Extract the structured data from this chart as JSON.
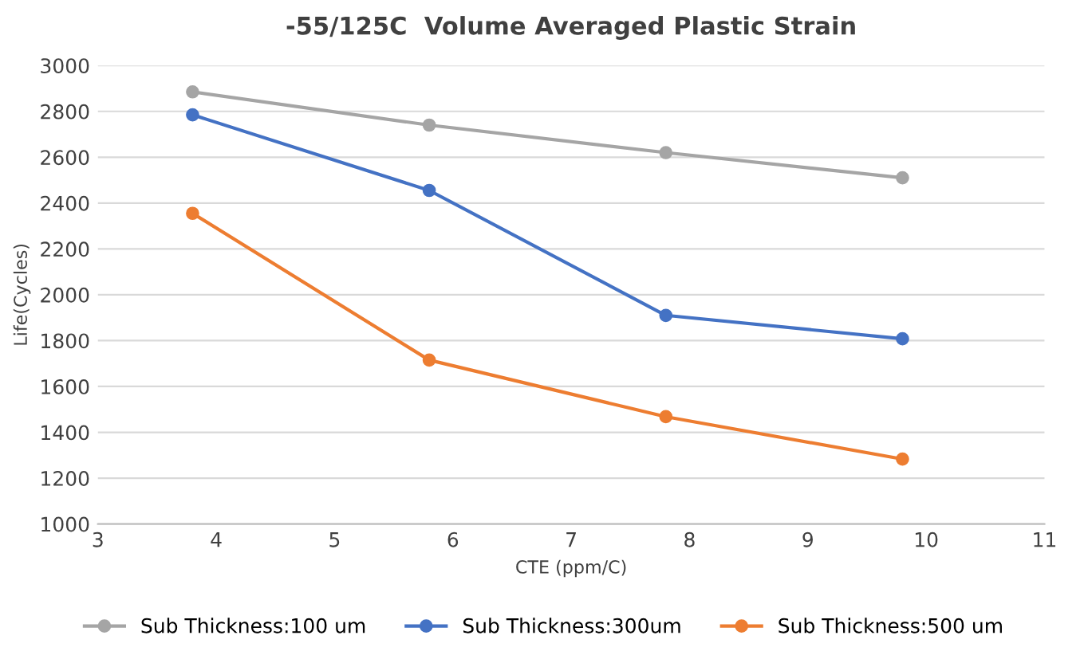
{
  "chart_data": {
    "type": "line",
    "title": "-55/125C  Volume Averaged Plastic Strain",
    "xlabel": "CTE (ppm/C)",
    "ylabel": "Life(Cycles)",
    "x": [
      3.8,
      5.8,
      7.8,
      9.8
    ],
    "series": [
      {
        "name": "Sub Thickness:100 um",
        "color": "#a5a5a5",
        "values": [
          2885,
          2740,
          2620,
          2510
        ]
      },
      {
        "name": "Sub Thickness:300um",
        "color": "#4472c4",
        "values": [
          2785,
          2455,
          1910,
          1808
        ]
      },
      {
        "name": "Sub Thickness:500 um",
        "color": "#ed7d31",
        "values": [
          2355,
          1715,
          1468,
          1283
        ]
      }
    ],
    "xlim": [
      3,
      11
    ],
    "xticks": [
      3,
      4,
      5,
      6,
      7,
      8,
      9,
      10,
      11
    ],
    "ylim": [
      1000,
      3000
    ],
    "yticks": [
      1000,
      1200,
      1400,
      1600,
      1800,
      2000,
      2200,
      2400,
      2600,
      2800,
      3000
    ],
    "grid": "y",
    "legend": "bottom",
    "marker": "circle",
    "line_style": "solid"
  }
}
